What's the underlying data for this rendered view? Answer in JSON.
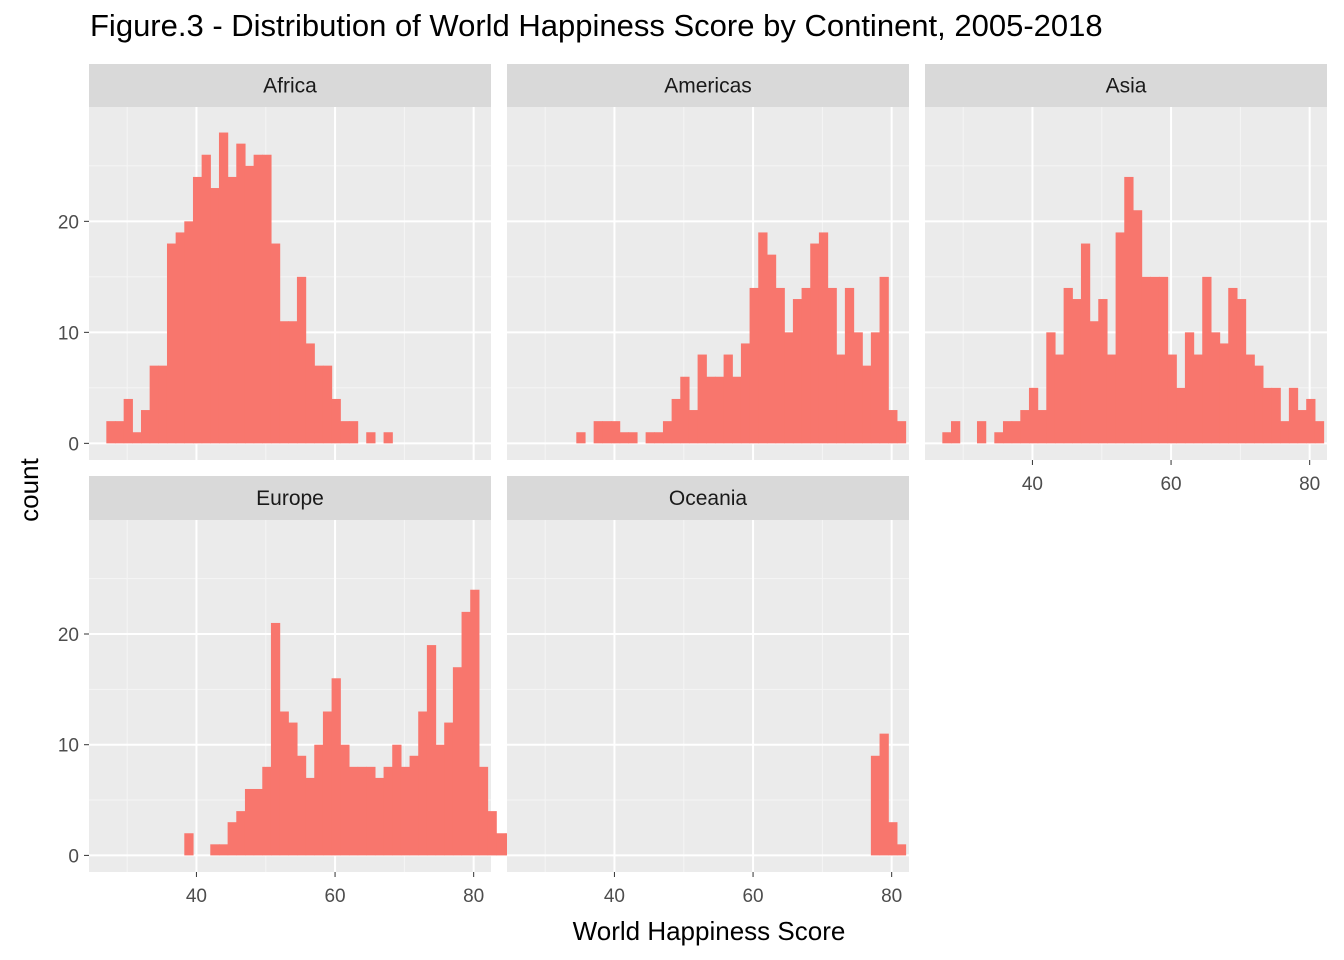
{
  "chart_data": {
    "type": "bar",
    "title": "Figure.3 - Distribution of World Happiness Score by Continent, 2005-2018",
    "xlabel": "World Happiness Score",
    "ylabel": "count",
    "xlim": [
      24.5,
      82.5
    ],
    "ylim": [
      -1.5,
      30.3
    ],
    "x_ticks": [
      40,
      60,
      80
    ],
    "y_ticks": [
      0,
      10,
      20
    ],
    "bin_start": 27,
    "bin_width": 1.25,
    "bar_color": "#F8766D",
    "panel_background": "#EBEBEB",
    "strip_background": "#D9D9D9",
    "grid": true,
    "legend": "none",
    "facets": [
      {
        "name": "Africa",
        "counts": [
          2,
          2,
          4,
          1,
          3,
          7,
          7,
          18,
          19,
          20,
          24,
          26,
          23,
          28,
          24,
          27,
          25,
          26,
          26,
          18,
          11,
          11,
          15,
          9,
          7,
          7,
          4,
          2,
          2,
          0,
          1,
          0,
          1,
          0,
          0,
          0,
          0,
          0,
          0,
          0,
          0,
          0,
          0,
          0,
          0,
          0,
          0,
          0
        ]
      },
      {
        "name": "Americas",
        "counts": [
          0,
          0,
          0,
          0,
          0,
          0,
          1,
          0,
          2,
          2,
          2,
          1,
          1,
          0,
          1,
          1,
          2,
          4,
          6,
          3,
          8,
          6,
          6,
          8,
          6,
          9,
          14,
          19,
          17,
          14,
          10,
          13,
          14,
          18,
          19,
          14,
          8,
          14,
          10,
          7,
          10,
          15,
          3,
          2,
          0,
          0,
          0,
          0
        ]
      },
      {
        "name": "Asia",
        "counts": [
          1,
          2,
          0,
          0,
          2,
          0,
          1,
          2,
          2,
          3,
          5,
          3,
          10,
          8,
          14,
          13,
          18,
          11,
          13,
          8,
          19,
          24,
          21,
          15,
          15,
          15,
          8,
          5,
          10,
          8,
          15,
          10,
          9,
          14,
          13,
          8,
          7,
          5,
          5,
          2,
          5,
          3,
          4,
          2,
          0,
          0,
          0,
          0
        ]
      },
      {
        "name": "Europe",
        "counts": [
          0,
          0,
          0,
          0,
          0,
          0,
          0,
          0,
          0,
          2,
          0,
          0,
          1,
          1,
          3,
          4,
          6,
          6,
          8,
          21,
          13,
          12,
          9,
          7,
          10,
          13,
          16,
          10,
          8,
          8,
          8,
          7,
          8,
          10,
          8,
          9,
          13,
          19,
          10,
          12,
          17,
          22,
          24,
          8,
          4,
          2,
          2,
          0
        ]
      },
      {
        "name": "Oceania",
        "counts": [
          0,
          0,
          0,
          0,
          0,
          0,
          0,
          0,
          0,
          0,
          0,
          0,
          0,
          0,
          0,
          0,
          0,
          0,
          0,
          0,
          0,
          0,
          0,
          0,
          0,
          0,
          0,
          0,
          0,
          0,
          0,
          0,
          0,
          0,
          0,
          0,
          0,
          0,
          0,
          0,
          9,
          11,
          3,
          1,
          0,
          0,
          0,
          0
        ]
      }
    ]
  }
}
